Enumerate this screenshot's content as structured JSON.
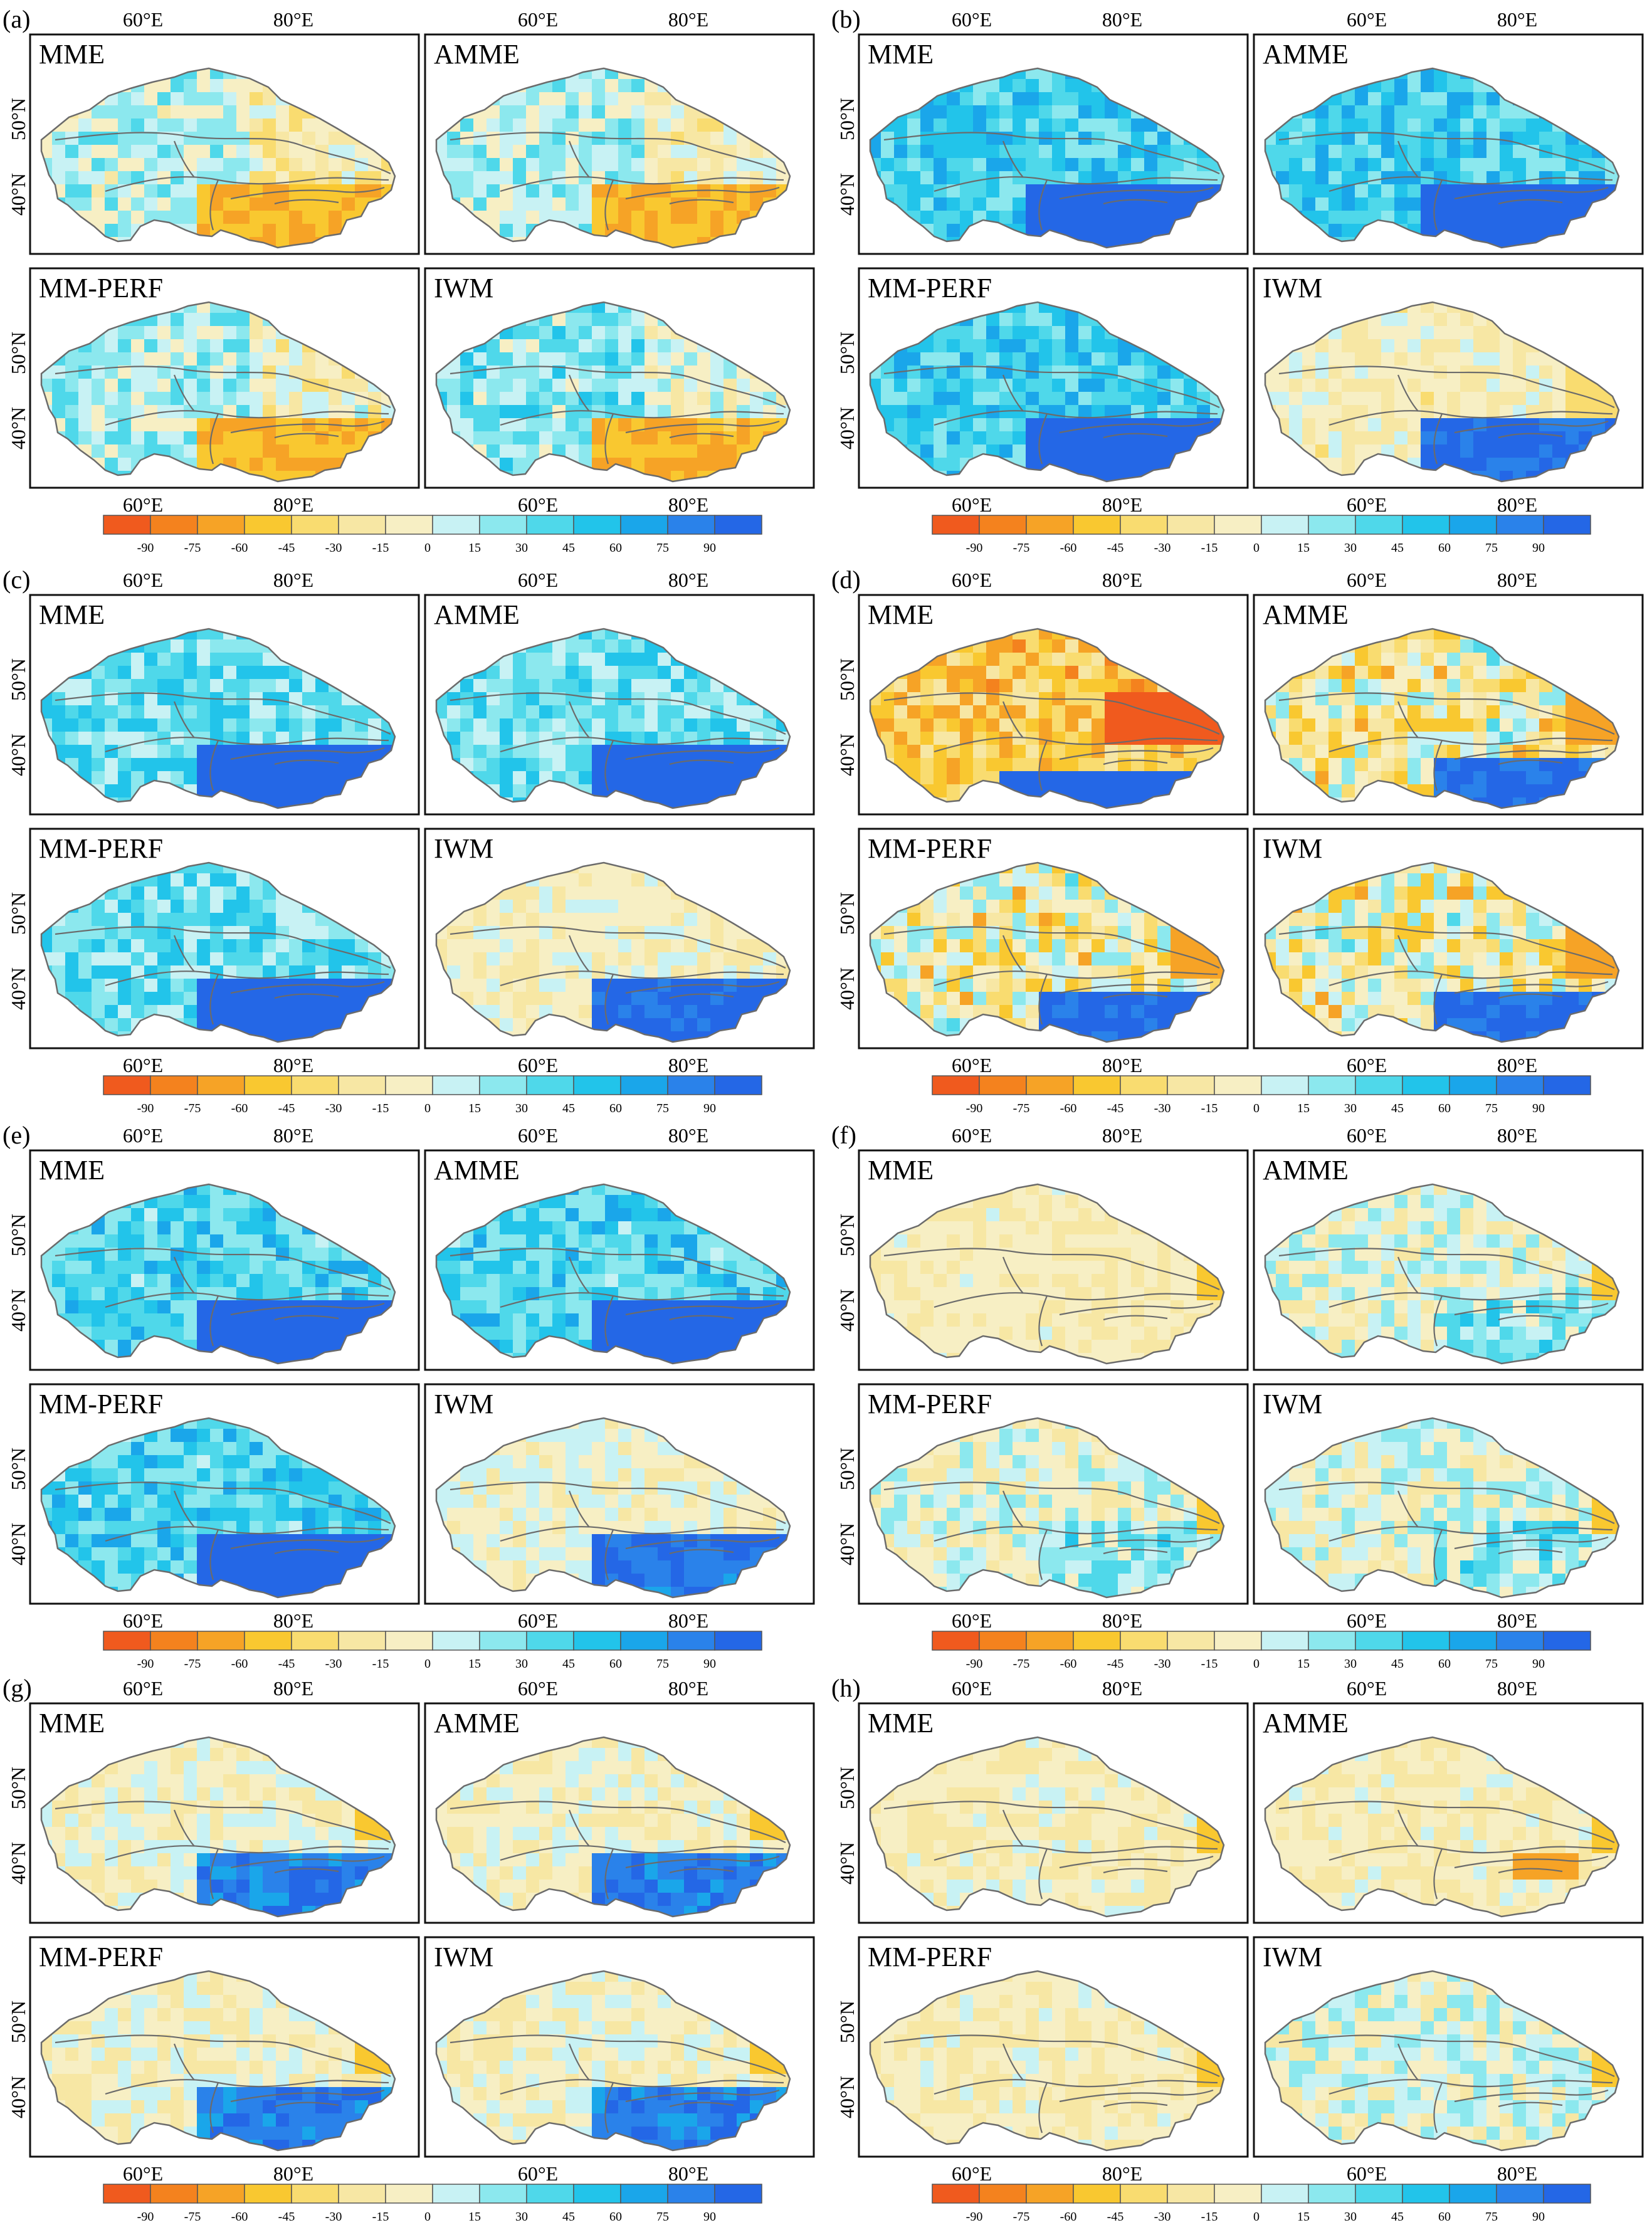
{
  "figure": {
    "panels": [
      {
        "id": "a",
        "label": "(a)",
        "pattern": "a"
      },
      {
        "id": "b",
        "label": "(b)",
        "pattern": "b"
      },
      {
        "id": "c",
        "label": "(c)",
        "pattern": "c"
      },
      {
        "id": "d",
        "label": "(d)",
        "pattern": "d"
      },
      {
        "id": "e",
        "label": "(e)",
        "pattern": "e"
      },
      {
        "id": "f",
        "label": "(f)",
        "pattern": "f"
      },
      {
        "id": "g",
        "label": "(g)",
        "pattern": "g"
      },
      {
        "id": "h",
        "label": "(h)",
        "pattern": "h"
      }
    ],
    "methods": [
      "MME",
      "AMME",
      "MM-PERF",
      "IWM"
    ],
    "lon_ticks": [
      "60°E",
      "80°E"
    ],
    "lat_ticks": [
      "50°N",
      "40°N"
    ],
    "colorbar": {
      "ticks": [
        "-90",
        "-75",
        "-60",
        "-45",
        "-30",
        "-15",
        "0",
        "15",
        "30",
        "45",
        "60",
        "75",
        "90"
      ],
      "colors": [
        "#f05a1e",
        "#f4821e",
        "#f6a326",
        "#f9c830",
        "#f9dc70",
        "#f7e7a4",
        "#f7efc4",
        "#c8f2f4",
        "#8ce8ee",
        "#4fd8ea",
        "#22c4ea",
        "#1aa6ea",
        "#2a82ea",
        "#2467e6"
      ]
    }
  }
}
